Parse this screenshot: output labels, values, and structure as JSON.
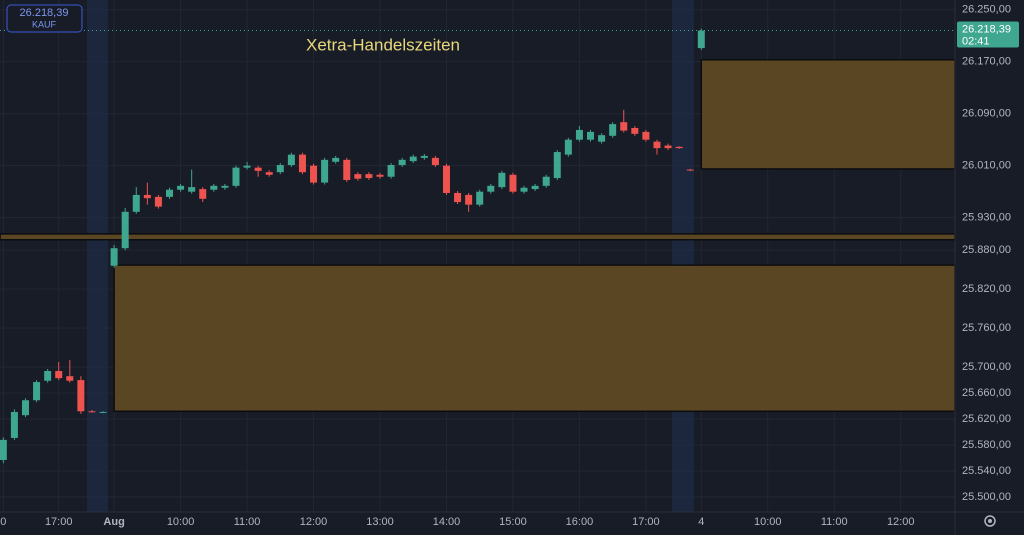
{
  "chart_data": {
    "type": "candlestick",
    "annotation": "Xetra-Handelszeiten",
    "badge": {
      "price": "26.218,39",
      "side": "KAUF"
    },
    "price_label": {
      "price": "26.218,39",
      "countdown": "02:41"
    },
    "up_color": "#3fa68f",
    "down_color": "#ef5350",
    "zone_color": "#5b4623",
    "x": [
      -10,
      -9,
      -8,
      -7,
      -6,
      -5,
      -4,
      -3,
      -2,
      -1,
      0,
      1,
      2,
      3,
      4,
      5,
      6,
      7,
      8,
      9,
      10,
      11,
      12,
      13,
      14,
      15,
      16,
      17,
      18,
      19,
      20,
      21,
      22,
      23,
      24,
      25,
      26,
      27,
      28,
      29,
      30,
      31,
      32,
      33,
      34,
      35,
      36,
      37,
      38,
      39,
      40,
      41,
      42,
      43,
      44,
      45,
      46,
      47,
      48,
      49,
      50,
      51,
      52,
      53
    ],
    "open": [
      25557,
      25591,
      25626,
      25649,
      25679,
      25694,
      25686,
      25680,
      25632,
      25631,
      25856,
      25883,
      25939,
      25965,
      25962,
      25962,
      25973,
      25970,
      25974,
      25973,
      25976,
      25979,
      26007,
      26007,
      26000,
      26000,
      26011,
      26027,
      26010,
      25984,
      26016,
      26019,
      25997,
      25997,
      25996,
      25993,
      26011,
      26017,
      26022,
      26022,
      26010,
      25968,
      25965,
      25950,
      25970,
      25977,
      25996,
      25970,
      25974,
      25979,
      25991,
      26027,
      26050,
      26050,
      26047,
      26056,
      26077,
      26068,
      26062,
      26047,
      26041,
      26039,
      26004,
      26191
    ],
    "high": [
      25592,
      25635,
      25652,
      25680,
      25697,
      25708,
      25711,
      25686,
      25634,
      25632,
      25888,
      25945,
      25977,
      25984,
      25965,
      25976,
      25982,
      26004,
      25977,
      25982,
      25982,
      26010,
      26016,
      26010,
      26003,
      26014,
      26030,
      26030,
      26013,
      26022,
      26025,
      26022,
      26000,
      26000,
      25999,
      26014,
      26022,
      26027,
      26028,
      26025,
      26013,
      25971,
      25968,
      25973,
      25982,
      26002,
      25999,
      25979,
      25982,
      25996,
      26034,
      26053,
      26071,
      26065,
      26060,
      26077,
      26096,
      26071,
      26065,
      26050,
      26044,
      26040,
      26005,
      26221
    ],
    "low": [
      25552,
      25588,
      25623,
      25646,
      25676,
      25680,
      25676,
      25628,
      25630,
      25629,
      25853,
      25880,
      25936,
      25950,
      25944,
      25959,
      25970,
      25967,
      25954,
      25970,
      25973,
      25976,
      26004,
      25993,
      25993,
      25997,
      26008,
      25997,
      25981,
      25981,
      26013,
      25985,
      25987,
      25988,
      25990,
      25990,
      26008,
      26014,
      26019,
      26008,
      25965,
      25951,
      25939,
      25947,
      25967,
      25974,
      25967,
      25967,
      25971,
      25976,
      25988,
      26024,
      26047,
      26047,
      26044,
      26053,
      26061,
      26056,
      26047,
      26027,
      26034,
      26036,
      26002,
      26188
    ],
    "close": [
      25588,
      25631,
      25649,
      25677,
      25694,
      25683,
      25679,
      25632,
      25631,
      25631,
      25883,
      25939,
      25965,
      25960,
      25947,
      25973,
      25979,
      25977,
      25959,
      25979,
      25979,
      26007,
      26010,
      26002,
      25996,
      26011,
      26027,
      26000,
      25984,
      26019,
      26022,
      25988,
      25990,
      25991,
      25993,
      26011,
      26019,
      26024,
      26025,
      26011,
      25968,
      25954,
      25950,
      25970,
      25979,
      25999,
      25970,
      25976,
      25979,
      25993,
      26031,
      26050,
      26065,
      26062,
      26057,
      26074,
      26064,
      26059,
      26050,
      26037,
      26037,
      26037,
      26003,
      26218
    ],
    "zones": [
      {
        "start": 53,
        "from": 26005,
        "to": 26173
      },
      {
        "start": 0,
        "from": 25632,
        "to": 25857
      },
      {
        "start": -10.3,
        "from": 25896,
        "to": 25905
      }
    ],
    "xlim": [
      -10.3,
      75.9
    ],
    "xticks": [
      {
        "value": -10,
        "label": "0"
      },
      {
        "value": -5,
        "label": "17:00"
      },
      {
        "value": 0,
        "label": "Aug"
      },
      {
        "value": 6,
        "label": "10:00"
      },
      {
        "value": 12,
        "label": "11:00"
      },
      {
        "value": 18,
        "label": "12:00"
      },
      {
        "value": 24,
        "label": "13:00"
      },
      {
        "value": 30,
        "label": "14:00"
      },
      {
        "value": 36,
        "label": "15:00"
      },
      {
        "value": 42,
        "label": "16:00"
      },
      {
        "value": 48,
        "label": "17:00"
      },
      {
        "value": 53,
        "label": "4"
      },
      {
        "value": 59,
        "label": "10:00"
      },
      {
        "value": 65,
        "label": "11:00"
      },
      {
        "value": 71,
        "label": "12:00"
      }
    ],
    "ylim": [
      25477,
      26265
    ],
    "yticks": [
      {
        "value": 26250,
        "label": "26.250,00"
      },
      {
        "value": 26170,
        "label": "26.170,00"
      },
      {
        "value": 26090,
        "label": "26.090,00"
      },
      {
        "value": 26010,
        "label": "26.010,00"
      },
      {
        "value": 25930,
        "label": "25.930,00"
      },
      {
        "value": 25880,
        "label": "25.880,00"
      },
      {
        "value": 25820,
        "label": "25.820,00"
      },
      {
        "value": 25760,
        "label": "25.760,00"
      },
      {
        "value": 25700,
        "label": "25.700,00"
      },
      {
        "value": 25660,
        "label": "25.660,00"
      },
      {
        "value": 25620,
        "label": "25.620,00"
      },
      {
        "value": 25580,
        "label": "25.580,00"
      },
      {
        "value": 25540,
        "label": "25.540,00"
      },
      {
        "value": 25500,
        "label": "25.500,00"
      }
    ],
    "grid": true
  }
}
